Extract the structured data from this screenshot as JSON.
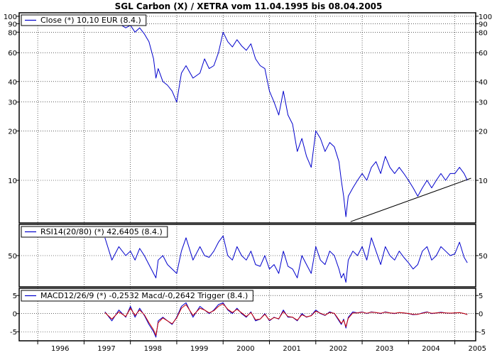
{
  "title": "SGL Carbon (X) / XETRA vom 11.04.1995 bis 08.04.2005",
  "colors": {
    "price": "#0000cc",
    "macd": "#0000cc",
    "trigger": "#cc0000",
    "trend": "#000000",
    "grid": "#000000",
    "frame": "#000000"
  },
  "chart_data": [
    {
      "type": "line",
      "legend": "Close (*) 10,10 EUR (8.4.)",
      "log_scale": true,
      "grid": true,
      "x_ticks": [
        "1996",
        "1997",
        "1998",
        "1999",
        "2000",
        "2001",
        "2002",
        "2003",
        "2004",
        "2005"
      ],
      "y_ticks": [
        "100",
        "90",
        "80",
        "60",
        "40",
        "30",
        "20",
        "10"
      ],
      "ylim": [
        5.5,
        105
      ],
      "series": [
        {
          "x": [
            1997.45,
            1997.6,
            1997.75,
            1997.9,
            1998.0,
            1998.1,
            1998.2,
            1998.3,
            1998.4,
            1998.5,
            1998.55,
            1998.6,
            1998.7,
            1998.8,
            1998.9,
            1999.0,
            1999.1,
            1999.2,
            1999.35,
            1999.5,
            1999.6,
            1999.7,
            1999.8,
            1999.9,
            2000.0,
            2000.1,
            2000.2,
            2000.3,
            2000.4,
            2000.5,
            2000.6,
            2000.7,
            2000.8,
            2000.9,
            2001.0,
            2001.1,
            2001.2,
            2001.3,
            2001.4,
            2001.5,
            2001.6,
            2001.7,
            2001.8,
            2001.9,
            2002.0,
            2002.1,
            2002.2,
            2002.3,
            2002.4,
            2002.5,
            2002.55,
            2002.6,
            2002.65,
            2002.7,
            2002.8,
            2002.9,
            2003.0,
            2003.1,
            2003.2,
            2003.3,
            2003.4,
            2003.5,
            2003.6,
            2003.7,
            2003.8,
            2003.9,
            2004.0,
            2004.1,
            2004.2,
            2004.3,
            2004.4,
            2004.5,
            2004.6,
            2004.7,
            2004.8,
            2004.9,
            2005.0,
            2005.1,
            2005.2,
            2005.27
          ],
          "y": [
            95,
            92,
            90,
            85,
            88,
            80,
            85,
            78,
            70,
            55,
            42,
            48,
            40,
            38,
            35,
            30,
            45,
            50,
            42,
            45,
            55,
            48,
            50,
            60,
            80,
            70,
            65,
            72,
            66,
            62,
            68,
            55,
            50,
            48,
            35,
            30,
            25,
            35,
            25,
            22,
            15,
            18,
            14,
            12,
            20,
            18,
            15,
            17,
            16,
            13,
            10,
            8,
            6,
            8,
            9,
            10,
            11,
            10,
            12,
            13,
            11,
            14,
            12,
            11,
            12,
            11,
            10,
            9,
            8,
            9,
            10,
            9,
            10,
            11,
            10,
            11,
            11,
            12,
            11,
            10
          ]
        }
      ],
      "trend_line": {
        "x": [
          2002.75,
          2005.35
        ],
        "y": [
          5.6,
          10.3
        ]
      }
    },
    {
      "type": "line",
      "legend": "RSI14(20/80) (*) 42,6405 (8.4.)",
      "y_ticks": [
        "50"
      ],
      "ylim": [
        15,
        85
      ],
      "series": [
        {
          "x": [
            1997.45,
            1997.6,
            1997.75,
            1997.9,
            1998.0,
            1998.1,
            1998.2,
            1998.3,
            1998.4,
            1998.5,
            1998.55,
            1998.6,
            1998.7,
            1998.8,
            1998.9,
            1999.0,
            1999.1,
            1999.2,
            1999.35,
            1999.5,
            1999.6,
            1999.7,
            1999.8,
            1999.9,
            2000.0,
            2000.1,
            2000.2,
            2000.3,
            2000.4,
            2000.5,
            2000.6,
            2000.7,
            2000.8,
            2000.9,
            2001.0,
            2001.1,
            2001.2,
            2001.3,
            2001.4,
            2001.5,
            2001.6,
            2001.7,
            2001.8,
            2001.9,
            2002.0,
            2002.1,
            2002.2,
            2002.3,
            2002.4,
            2002.5,
            2002.55,
            2002.6,
            2002.65,
            2002.7,
            2002.8,
            2002.9,
            2003.0,
            2003.1,
            2003.2,
            2003.3,
            2003.4,
            2003.5,
            2003.6,
            2003.7,
            2003.8,
            2003.9,
            2004.0,
            2004.1,
            2004.2,
            2004.3,
            2004.4,
            2004.5,
            2004.6,
            2004.7,
            2004.8,
            2004.9,
            2005.0,
            2005.1,
            2005.2,
            2005.27
          ],
          "y": [
            70,
            45,
            60,
            50,
            55,
            45,
            58,
            50,
            40,
            30,
            25,
            45,
            50,
            40,
            35,
            30,
            55,
            70,
            45,
            60,
            50,
            48,
            55,
            65,
            72,
            50,
            45,
            60,
            50,
            45,
            55,
            40,
            38,
            50,
            35,
            40,
            30,
            55,
            38,
            35,
            25,
            50,
            40,
            30,
            60,
            45,
            40,
            55,
            50,
            35,
            25,
            30,
            20,
            45,
            55,
            50,
            60,
            45,
            70,
            55,
            40,
            60,
            50,
            45,
            55,
            48,
            42,
            35,
            40,
            55,
            60,
            45,
            50,
            60,
            55,
            50,
            52,
            65,
            48,
            42
          ]
        }
      ]
    },
    {
      "type": "line",
      "legend": "MACD12/26/9 (*) -0,2532 Macd/-0,2642 Trigger (8.4.)",
      "y_ticks": [
        "5",
        "0",
        "-5"
      ],
      "ylim": [
        -7.5,
        7
      ],
      "series": [
        {
          "x": [
            1997.45,
            1997.6,
            1997.75,
            1997.9,
            1998.0,
            1998.1,
            1998.2,
            1998.3,
            1998.4,
            1998.5,
            1998.55,
            1998.6,
            1998.7,
            1998.8,
            1998.9,
            1999.0,
            1999.1,
            1999.2,
            1999.35,
            1999.5,
            1999.6,
            1999.7,
            1999.8,
            1999.9,
            2000.0,
            2000.1,
            2000.2,
            2000.3,
            2000.4,
            2000.5,
            2000.6,
            2000.7,
            2000.8,
            2000.9,
            2001.0,
            2001.1,
            2001.2,
            2001.3,
            2001.4,
            2001.5,
            2001.6,
            2001.7,
            2001.8,
            2001.9,
            2002.0,
            2002.1,
            2002.2,
            2002.3,
            2002.4,
            2002.5,
            2002.55,
            2002.6,
            2002.65,
            2002.7,
            2002.8,
            2002.9,
            2003.0,
            2003.1,
            2003.2,
            2003.3,
            2003.4,
            2003.5,
            2003.6,
            2003.7,
            2003.8,
            2003.9,
            2004.0,
            2004.1,
            2004.2,
            2004.3,
            2004.4,
            2004.5,
            2004.6,
            2004.7,
            2004.8,
            2004.9,
            2005.0,
            2005.1,
            2005.2,
            2005.27
          ],
          "y": [
            0.5,
            -2,
            1,
            -1,
            2,
            -1,
            1.5,
            -0.5,
            -3,
            -5,
            -6.5,
            -2,
            -1,
            -2,
            -3,
            -1,
            2,
            3,
            -1,
            2,
            1,
            0,
            1,
            2.5,
            3,
            1,
            0,
            1.5,
            0,
            -1,
            0.5,
            -2,
            -1.5,
            0,
            -2,
            -1,
            -1.5,
            1,
            -1,
            -1,
            -2,
            0,
            -1,
            -0.5,
            1,
            0,
            -0.5,
            0.5,
            0,
            -2,
            -3,
            -1.5,
            -4,
            -1,
            0.5,
            0.2,
            0.5,
            0,
            0.5,
            0.3,
            0,
            0.5,
            0.2,
            0,
            0.3,
            0.2,
            0,
            -0.3,
            -0.2,
            0.2,
            0.5,
            0,
            0.2,
            0.4,
            0.2,
            0.1,
            0.2,
            0.3,
            0,
            -0.25
          ]
        },
        {
          "x": [
            1997.45,
            1997.6,
            1997.75,
            1997.9,
            1998.0,
            1998.1,
            1998.2,
            1998.3,
            1998.4,
            1998.5,
            1998.55,
            1998.6,
            1998.7,
            1998.8,
            1998.9,
            1999.0,
            1999.1,
            1999.2,
            1999.35,
            1999.5,
            1999.6,
            1999.7,
            1999.8,
            1999.9,
            2000.0,
            2000.1,
            2000.2,
            2000.3,
            2000.4,
            2000.5,
            2000.6,
            2000.7,
            2000.8,
            2000.9,
            2001.0,
            2001.1,
            2001.2,
            2001.3,
            2001.4,
            2001.5,
            2001.6,
            2001.7,
            2001.8,
            2001.9,
            2002.0,
            2002.1,
            2002.2,
            2002.3,
            2002.4,
            2002.5,
            2002.55,
            2002.6,
            2002.65,
            2002.7,
            2002.8,
            2002.9,
            2003.0,
            2003.1,
            2003.2,
            2003.3,
            2003.4,
            2003.5,
            2003.6,
            2003.7,
            2003.8,
            2003.9,
            2004.0,
            2004.1,
            2004.2,
            2004.3,
            2004.4,
            2004.5,
            2004.6,
            2004.7,
            2004.8,
            2004.9,
            2005.0,
            2005.1,
            2005.2,
            2005.27
          ],
          "y": [
            0.3,
            -1.5,
            0.5,
            -0.8,
            1.5,
            -0.5,
            1,
            -0.3,
            -2.5,
            -4.5,
            -6,
            -2.5,
            -1.2,
            -2,
            -2.8,
            -1.2,
            1.5,
            2.5,
            -0.5,
            1.5,
            1,
            0.2,
            0.8,
            2,
            2.7,
            1.2,
            0.3,
            1.2,
            0.2,
            -0.8,
            0.3,
            -1.7,
            -1.5,
            -0.2,
            -1.8,
            -1.1,
            -1.4,
            0.6,
            -0.8,
            -1,
            -1.8,
            -0.3,
            -0.9,
            -0.6,
            0.7,
            0.1,
            -0.4,
            0.3,
            0.1,
            -1.7,
            -2.7,
            -1.8,
            -3.6,
            -1.3,
            0.2,
            0.2,
            0.4,
            0.1,
            0.4,
            0.3,
            0.1,
            0.4,
            0.2,
            0.1,
            0.3,
            0.2,
            0.05,
            -0.2,
            -0.2,
            0.1,
            0.4,
            0.1,
            0.2,
            0.3,
            0.2,
            0.15,
            0.2,
            0.25,
            0.05,
            -0.26
          ]
        }
      ]
    }
  ]
}
